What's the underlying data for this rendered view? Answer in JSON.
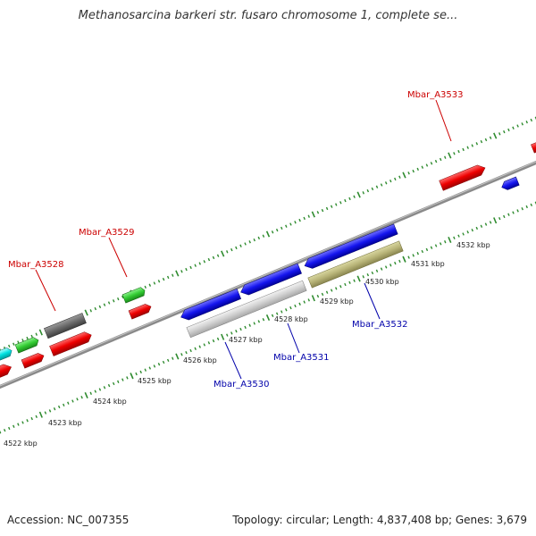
{
  "title": "Methanosarcina barkeri str. fusaro chromosome 1, complete se...",
  "footer": {
    "accession": "Accession: NC_007355",
    "summary": "Topology: circular; Length: 4,837,408 bp; Genes: 3,679"
  },
  "colors": {
    "backbone": "#8a8a8a",
    "ticks": "#2e8b2e",
    "label_forward": "#cc0000",
    "label_reverse": "#0000aa"
  },
  "kbp_labels": [
    "4522 kbp",
    "4523 kbp",
    "4524 kbp",
    "4525 kbp",
    "4526 kbp",
    "4527 kbp",
    "4528 kbp",
    "4529 kbp",
    "4530 kbp",
    "4531 kbp",
    "4532 kbp"
  ],
  "gene_labels": {
    "forward": [
      "Mbar_A3528",
      "Mbar_A3529",
      "Mbar_A3533"
    ],
    "reverse": [
      "Mbar_A3530",
      "Mbar_A3531",
      "Mbar_A3532"
    ]
  },
  "feature_colors": [
    "red",
    "green",
    "gray",
    "cyan",
    "blue",
    "light-gray",
    "olive"
  ]
}
